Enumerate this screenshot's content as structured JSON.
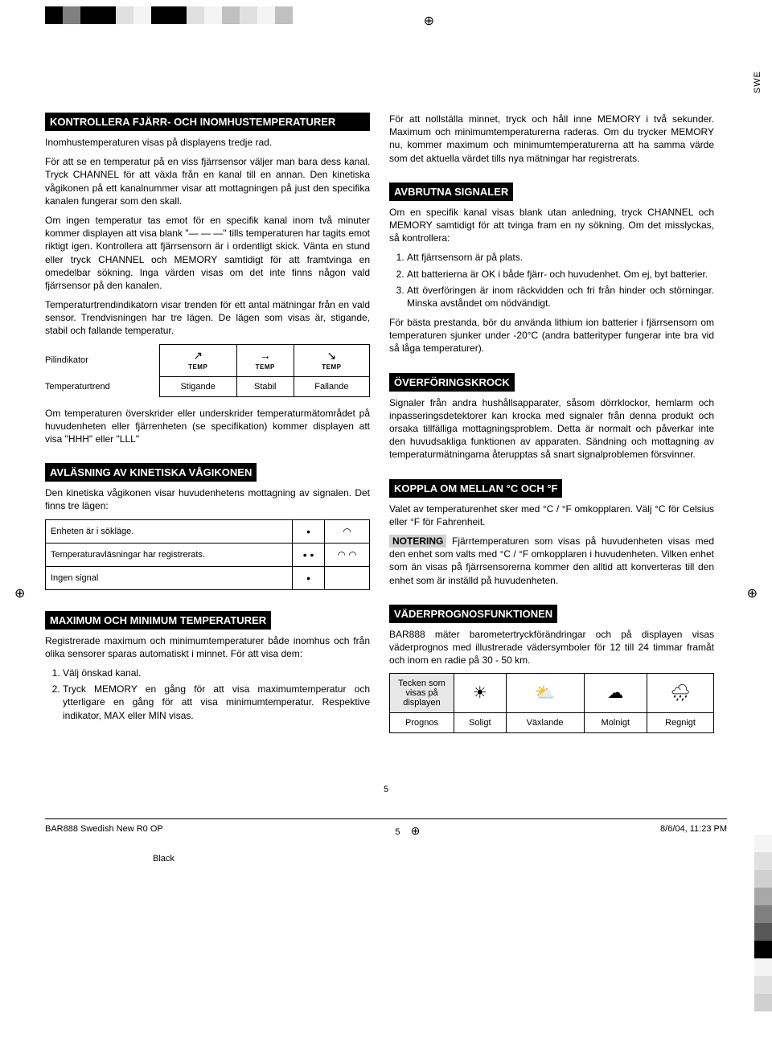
{
  "meta": {
    "lang_label": "SWE",
    "page_number": "5",
    "footer_doc": "BAR888 Swedish New R0 OP",
    "footer_page": "5",
    "footer_date": "8/6/04, 11:23 PM",
    "footer_color": "Black"
  },
  "top_strip_colors": [
    "#000000",
    "#808080",
    "#000000",
    "#000000",
    "#e0e0e0",
    "#f4f4f4",
    "#000000",
    "#000000",
    "#e0e0e0",
    "#f4f4f4",
    "#c0c0c0",
    "#e0e0e0",
    "#f4f4f4",
    "#c0c0c0"
  ],
  "right_swatch_colors": [
    "#f4f4f4",
    "#e0e0e0",
    "#d0d0d0",
    "#a8a8a8",
    "#808080",
    "#585858",
    "#000000",
    "#f4f4f4",
    "#e0e0e0",
    "#d0d0d0"
  ],
  "sec1": {
    "title": "KONTROLLERA FJÄRR- OCH INOMHUSTEMPERATURER",
    "p1": "Inomhustemperaturen visas på displayens tredje rad.",
    "p2": "För att se en temperatur på en viss fjärrsensor väljer man bara dess kanal. Tryck CHANNEL för att växla från en kanal till en annan. Den kinetiska vågikonen på ett kanalnummer visar att mottagningen på just den specifika kanalen fungerar som den skall.",
    "p3": "Om ingen temperatur tas emot för en specifik kanal inom två minuter kommer displayen att visa blank \"— — —\" tills temperaturen har tagits emot riktigt igen. Kontrollera att fjärrsensorn är i ordentligt skick. Vänta en stund eller tryck CHANNEL och MEMORY samtidigt för att framtvinga en omedelbar sökning. Inga värden visas om det inte finns någon vald fjärrsensor på den kanalen.",
    "p4": "Temperaturtrendindikatorn visar trenden för ett antal mätningar från en vald sensor. Trendvisningen har tre lägen. De lägen som visas är, stigande, stabil och fallande temperatur.",
    "table": {
      "row1_label": "Pilindikator",
      "arrows": [
        "↗",
        "→",
        "↘"
      ],
      "temp_label": "TEMP",
      "row2_label": "Tempera­turtrend",
      "trends": [
        "Stigande",
        "Stabil",
        "Fallande"
      ]
    },
    "p5": "Om temperaturen överskrider eller underskrider temperaturmätområdet på huvudenheten eller fjärrenheten (se specifikation) kommer displayen att visa \"HHH\" eller \"LLL\""
  },
  "sec2": {
    "title": "AVLÄSNING AV KINETISKA VÅGIKONEN",
    "p1": "Den kinetiska vågikonen visar huvudenhetens mottagning av signalen. Det finns tre lägen:",
    "table": {
      "r1": "Enheten är i sökläge.",
      "r2": "Temperaturavläsningar har registrerats.",
      "r3": "Ingen signal"
    }
  },
  "sec3": {
    "title": "MAXIMUM OCH MINIMUM TEMPERATURER",
    "p1": "Registrerade maximum och minimumtemperaturer både inomhus och från olika sensorer sparas automatiskt i minnet. För att visa dem:",
    "li1": "Välj önskad kanal.",
    "li2": "Tryck MEMORY en gång för att visa maximumtemperatur och ytterligare en gång för att visa minimumtemperatur. Respektive indikator, MAX eller MIN visas."
  },
  "right1": {
    "p1": "För att nollställa minnet, tryck och håll inne MEMORY i två sekunder. Maximum och minimumtemperaturerna raderas. Om du trycker MEMORY nu, kommer maximum och minimumtemperaturerna att ha samma värde som det aktuella värdet tills nya mätningar har registrerats."
  },
  "sec4": {
    "title": "AVBRUTNA SIGNALER",
    "p1": "Om en specifik kanal visas blank utan anledning, tryck CHANNEL och MEMORY samtidigt för att tvinga fram en ny sökning. Om det misslyckas, så kontrollera:",
    "li1": "Att fjärrsensorn är på plats.",
    "li2": "Att batterierna är OK i både fjärr- och huvudenhet. Om ej, byt batterier.",
    "li3": "Att överföringen är inom räckvidden och fri från hinder och störningar. Minska avståndet om nödvändigt.",
    "p2": "För bästa prestanda, bör du använda lithium ion batterier i fjärrsensorn om temperaturen sjunker under -20°C (andra batterityper fungerar inte bra vid så låga temperaturer)."
  },
  "sec5": {
    "title": "ÖVERFÖRINGSKROCK",
    "p1": "Signaler från andra hushållsapparater, såsom dörrklockor, hemlarm och inpasseringsdetektorer kan krocka med signaler från denna produkt och orsaka tillfälliga mottagningsproblem. Detta är normalt och påverkar inte den huvudsakliga funktionen av apparaten. Sändning och mottagning av temperaturmätningarna återupptas så snart signalproblemen försvinner."
  },
  "sec6": {
    "title": "KOPPLA OM MELLAN °C OCH °F",
    "p1": "Valet av temperaturenhet sker med °C / °F omkopplaren. Välj °C för Celsius eller °F för Fahrenheit.",
    "note_label": "NOTERING",
    "p2": " Fjärrtemperaturen som visas på huvudenheten visas med den enhet som valts med °C / °F omkopplaren i huvudenheten. Vilken enhet som än visas på fjärrsensorerna kommer den alltid att konverteras till den enhet som är inställd på huvudenheten."
  },
  "sec7": {
    "title": "VÄDERPROGNOSFUNKTIONEN",
    "p1": "BAR888 mäter barometertryckförändringar och på displayen visas väderprognos med illustrerade vädersymboler för 12 till 24 timmar framåt och inom en radie på 30 - 50 km.",
    "table": {
      "r1c1": "Tecken som visas på displayen",
      "icons": [
        "☀",
        "⛅",
        "☁",
        "🌧"
      ],
      "r2c1": "Prognos",
      "labels": [
        "Soligt",
        "Växlande",
        "Molnigt",
        "Regnigt"
      ]
    }
  }
}
